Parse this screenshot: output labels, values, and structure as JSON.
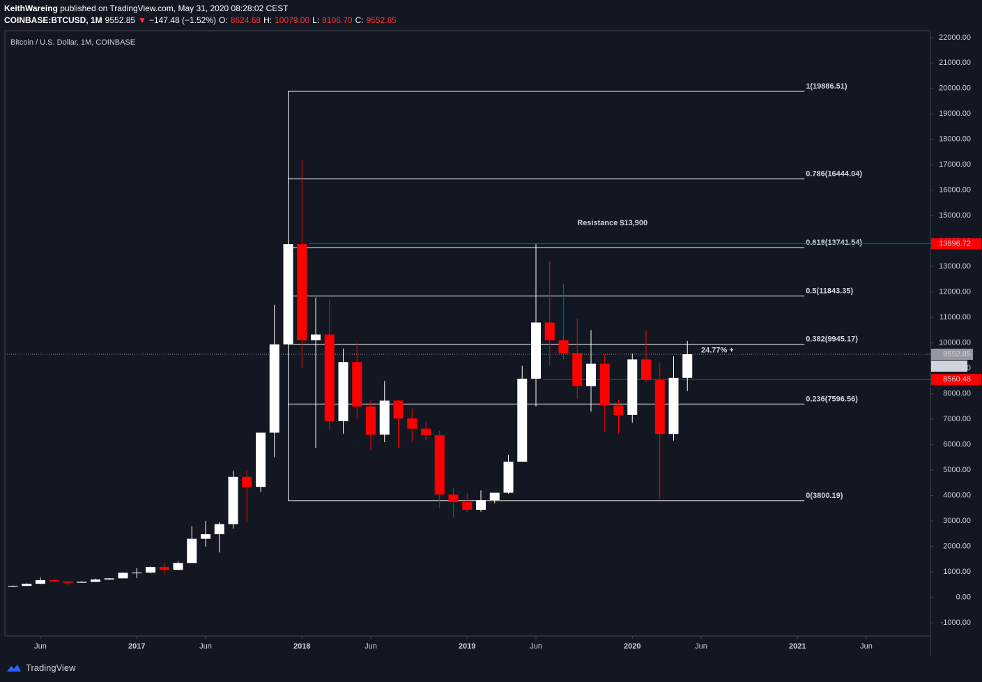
{
  "header": {
    "author": "KeithWareing",
    "published": "published on TradingView.com, May 31, 2020 08:28:02 CEST",
    "quote": [
      {
        "text": "COINBASE:BTCUSD, 1M",
        "color": "#ffffff"
      },
      {
        "text": "9552.85",
        "color": "#ffffff"
      },
      {
        "text": "▼",
        "color": "#ff3333"
      },
      {
        "text": "−147.48 (−1.52%)",
        "color": "#ffffff"
      },
      {
        "text": "O:",
        "color": "#ffffff"
      },
      {
        "text": "8624.68",
        "color": "#ff3333"
      },
      {
        "text": "H:",
        "color": "#ffffff"
      },
      {
        "text": "10079.00",
        "color": "#ff3333"
      },
      {
        "text": "L:",
        "color": "#ffffff"
      },
      {
        "text": "8106.70",
        "color": "#ff3333"
      },
      {
        "text": "C:",
        "color": "#ffffff"
      },
      {
        "text": "9552.85",
        "color": "#ff3333"
      }
    ]
  },
  "footer": {
    "brand": "TradingView"
  },
  "chart_data": {
    "type": "candlestick",
    "title": "Bitcoin / U.S. Dollar, 1M, COINBASE",
    "up_color": "#ffffff",
    "down_color": "#ff0000",
    "x": [
      "2016-04",
      "2016-05",
      "2016-06",
      "2016-07",
      "2016-08",
      "2016-09",
      "2016-10",
      "2016-11",
      "2016-12",
      "2017-01",
      "2017-02",
      "2017-03",
      "2017-04",
      "2017-05",
      "2017-06",
      "2017-07",
      "2017-08",
      "2017-09",
      "2017-10",
      "2017-11",
      "2017-12",
      "2018-01",
      "2018-02",
      "2018-03",
      "2018-04",
      "2018-05",
      "2018-06",
      "2018-07",
      "2018-08",
      "2018-09",
      "2018-10",
      "2018-11",
      "2018-12",
      "2019-01",
      "2019-02",
      "2019-03",
      "2019-04",
      "2019-05",
      "2019-06",
      "2019-07",
      "2019-08",
      "2019-09",
      "2019-10",
      "2019-11",
      "2019-12",
      "2020-01",
      "2020-02",
      "2020-03",
      "2020-04",
      "2020-05"
    ],
    "open": [
      416,
      448,
      531,
      673,
      624,
      573,
      608,
      700,
      745,
      964,
      970,
      1190,
      1080,
      1348,
      2300,
      2480,
      2875,
      4735,
      4340,
      6470,
      9940,
      13880,
      10100,
      10330,
      6925,
      9245,
      7500,
      6390,
      7730,
      7030,
      6630,
      6370,
      4040,
      3740,
      3440,
      3820,
      4110,
      5330,
      8590,
      10800,
      10100,
      9600,
      8300,
      9180,
      7540,
      7170,
      9350,
      8540,
      6420,
      8624.68
    ],
    "high": [
      467,
      549,
      780,
      704,
      626,
      629,
      733,
      756,
      980,
      1153,
      1211,
      1350,
      1410,
      2800,
      3000,
      2950,
      4980,
      4980,
      6470,
      11500,
      19891,
      17178,
      11780,
      11700,
      9780,
      10000,
      7760,
      8500,
      7760,
      7420,
      6930,
      6540,
      4300,
      4100,
      4200,
      4100,
      5600,
      9100,
      13880,
      13200,
      12320,
      10950,
      10500,
      9550,
      7750,
      9580,
      10500,
      9200,
      9470,
      10079.0
    ],
    "low": [
      412,
      439,
      521,
      608,
      471,
      568,
      603,
      683,
      741,
      751,
      940,
      893,
      1070,
      1348,
      2000,
      1760,
      2700,
      2980,
      4140,
      5500,
      9500,
      9000,
      5873,
      6600,
      6430,
      7000,
      5780,
      6100,
      5880,
      6100,
      6180,
      3500,
      3130,
      3350,
      3370,
      3700,
      4070,
      5330,
      7500,
      9100,
      9350,
      7800,
      7300,
      6500,
      6430,
      6860,
      8450,
      3850,
      6160,
      8106.7
    ],
    "close": [
      448,
      531,
      673,
      624,
      573,
      608,
      700,
      745,
      964,
      970,
      1190,
      1080,
      1348,
      2300,
      2480,
      2875,
      4735,
      4340,
      6470,
      9940,
      13880,
      10100,
      10330,
      6925,
      9245,
      7500,
      6390,
      7730,
      7030,
      6630,
      6370,
      4040,
      3740,
      3440,
      3820,
      4110,
      5330,
      8590,
      10800,
      10100,
      9600,
      8300,
      9180,
      7540,
      7170,
      9350,
      8540,
      6420,
      8624.68,
      9552.85
    ],
    "ylim": [
      -1520,
      22270
    ],
    "yticks": [
      {
        "value": -1000,
        "label": "-1000.00"
      },
      {
        "value": 0,
        "label": "0.00"
      },
      {
        "value": 1000,
        "label": "1000.00"
      },
      {
        "value": 2000,
        "label": "2000.00"
      },
      {
        "value": 3000,
        "label": "3000.00"
      },
      {
        "value": 4000,
        "label": "4000.00"
      },
      {
        "value": 5000,
        "label": "5000.00"
      },
      {
        "value": 6000,
        "label": "6000.00"
      },
      {
        "value": 7000,
        "label": "7000.00"
      },
      {
        "value": 8000,
        "label": "8000.00"
      },
      {
        "value": 9000,
        "label": "9000.00"
      },
      {
        "value": 10000,
        "label": "10000.00"
      },
      {
        "value": 11000,
        "label": "11000.00"
      },
      {
        "value": 12000,
        "label": "12000.00"
      },
      {
        "value": 13000,
        "label": "13000.00"
      },
      {
        "value": 14000,
        "label": "14000.00"
      },
      {
        "value": 15000,
        "label": "15000.00"
      },
      {
        "value": 16000,
        "label": "16000.00"
      },
      {
        "value": 17000,
        "label": "17000.00"
      },
      {
        "value": 18000,
        "label": "18000.00"
      },
      {
        "value": 19000,
        "label": "19000.00"
      },
      {
        "value": 20000,
        "label": "20000.00"
      },
      {
        "value": 21000,
        "label": "21000.00"
      },
      {
        "value": 22000,
        "label": "22000.00"
      }
    ],
    "xticks": [
      {
        "value": "2016-06",
        "label": "Jun"
      },
      {
        "value": "2017-01",
        "label": "2017"
      },
      {
        "value": "2017-06",
        "label": "Jun"
      },
      {
        "value": "2018-01",
        "label": "2018"
      },
      {
        "value": "2018-06",
        "label": "Jun"
      },
      {
        "value": "2019-01",
        "label": "2019"
      },
      {
        "value": "2019-06",
        "label": "Jun"
      },
      {
        "value": "2020-01",
        "label": "2020"
      },
      {
        "value": "2020-06",
        "label": "Jun"
      },
      {
        "value": "2021-01",
        "label": "2021"
      },
      {
        "value": "2021-06",
        "label": "Jun"
      }
    ],
    "fib": {
      "start": "2017-12",
      "end": "2021-01",
      "color": "#ffffff",
      "levels": [
        {
          "value": 19886.51,
          "label": "1(19886.51)"
        },
        {
          "value": 16444.04,
          "label": "0.786(16444.04)"
        },
        {
          "value": 13741.54,
          "label": "0.618(13741.54)"
        },
        {
          "value": 11843.35,
          "label": "0.5(11843.35)"
        },
        {
          "value": 9945.17,
          "label": "0.382(9945.17)"
        },
        {
          "value": 7596.56,
          "label": "0.236(7596.56)"
        },
        {
          "value": 3800.19,
          "label": "0(3800.19)"
        }
      ]
    },
    "hlines": [
      {
        "value": 13896.72,
        "label": "13896.72",
        "start": "2018-01",
        "color": "#ff0000"
      },
      {
        "value": 8560.48,
        "label": "8560.48",
        "start": "2019-06",
        "color": "#ff0000"
      }
    ],
    "last_price": {
      "value": 9552.85,
      "label": "9552.85",
      "countdown": "17:32:04"
    },
    "annotations": [
      {
        "text": "Resistance $13,900",
        "x": "2019-09",
        "y": 14700
      },
      {
        "text": "24.77% +",
        "x": "2020-06",
        "y": 9700
      }
    ]
  }
}
